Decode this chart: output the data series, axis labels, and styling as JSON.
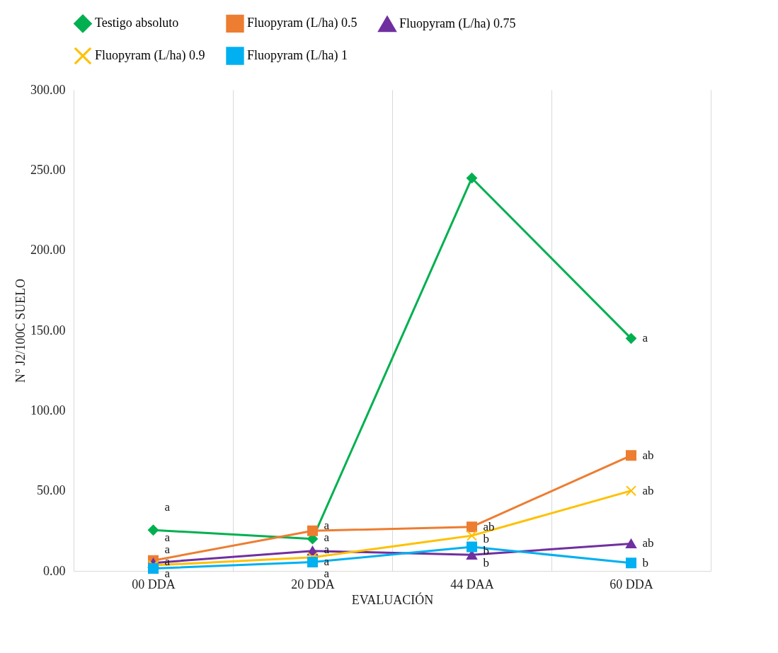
{
  "chart_data": {
    "type": "line",
    "xlabel": "EVALUACIÓN",
    "ylabel": "N° J2/100C SUELO",
    "categories": [
      "00 DDA",
      "20 DDA",
      "44 DAA",
      "60 DDA"
    ],
    "series": [
      {
        "name": "Testigo absoluto",
        "color": "#00b050",
        "marker": "diamond",
        "values": [
          25.5,
          20,
          245,
          145
        ]
      },
      {
        "name": "Fluopyram (L/ha) 0.5",
        "color": "#ed7d31",
        "marker": "square",
        "values": [
          6.5,
          25,
          27.5,
          72
        ]
      },
      {
        "name": "Fluopyram (L/ha) 0.75",
        "color": "#7030a0",
        "marker": "triangle",
        "values": [
          5,
          12.5,
          10,
          17
        ]
      },
      {
        "name": "Fluopyram (L/ha) 0.9",
        "color": "#ffc000",
        "marker": "cross",
        "values": [
          3.5,
          8.5,
          22,
          50
        ]
      },
      {
        "name": "Fluopyram (L/ha) 1",
        "color": "#00b0f0",
        "marker": "square",
        "values": [
          1.5,
          5.5,
          15,
          5
        ]
      }
    ],
    "ylim": [
      0,
      300
    ],
    "yticks": [
      {
        "value": 0,
        "label": "0.00"
      },
      {
        "value": 50,
        "label": "50.00"
      },
      {
        "value": 100,
        "label": "100.00"
      },
      {
        "value": 150,
        "label": "150.00"
      },
      {
        "value": 200,
        "label": "200.00"
      },
      {
        "value": 250,
        "label": "250.00"
      },
      {
        "value": 300,
        "label": "300.00"
      }
    ],
    "grid": "x",
    "legend": "top",
    "line_style": "solid",
    "annotations": [
      {
        "text": "a",
        "x": "00 DDA",
        "y": 25.5
      },
      {
        "text": "a",
        "x": "00 DDA",
        "y": 6.5
      },
      {
        "text": "a",
        "x": "00 DDA",
        "y": 5
      },
      {
        "text": "a",
        "x": "00 DDA",
        "y": 3.5
      },
      {
        "text": "a",
        "x": "00 DDA",
        "y": 1.5
      },
      {
        "text": "a",
        "x": "20 DDA",
        "y": 25
      },
      {
        "text": "a",
        "x": "20 DDA",
        "y": 20
      },
      {
        "text": "a",
        "x": "20 DDA",
        "y": 12.5
      },
      {
        "text": "a",
        "x": "20 DDA",
        "y": 8.5
      },
      {
        "text": "a",
        "x": "20 DDA",
        "y": 5.5
      },
      {
        "text": "ab",
        "x": "44 DAA",
        "y": 27.5
      },
      {
        "text": "b",
        "x": "44 DAA",
        "y": 22
      },
      {
        "text": "b",
        "x": "44 DAA",
        "y": 15
      },
      {
        "text": "b",
        "x": "44 DAA",
        "y": 10
      },
      {
        "text": "a",
        "x": "60 DDA",
        "y": 145
      },
      {
        "text": "ab",
        "x": "60 DDA",
        "y": 72
      },
      {
        "text": "ab",
        "x": "60 DDA",
        "y": 50
      },
      {
        "text": "ab",
        "x": "60 DDA",
        "y": 17
      },
      {
        "text": "b",
        "x": "60 DDA",
        "y": 5
      }
    ]
  }
}
